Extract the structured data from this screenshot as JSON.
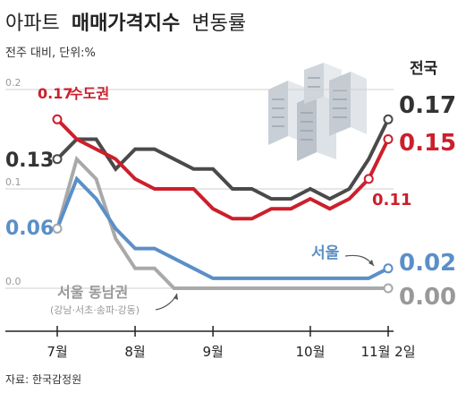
{
  "title_part1": "아파트",
  "title_part2": "매매가격지수",
  "title_part3": "변동률",
  "subtitle": "전주 대비, 단위:%",
  "source": "자료: 한국감정원",
  "colors": {
    "national": "#4a4a4a",
    "capital": "#cc1f2b",
    "seoul": "#5b8fc7",
    "gangnam": "#a9a9a9",
    "grid": "#cfcfcf",
    "background": "#ffffff"
  },
  "chart_data": {
    "type": "line",
    "title": "아파트 매매가격지수 변동률",
    "subtitle": "전주 대비, 단위:%",
    "xlabel": "",
    "ylabel": "",
    "x": [
      0,
      1,
      2,
      3,
      4,
      5,
      6,
      7,
      8,
      9,
      10,
      11,
      12,
      13,
      14,
      15,
      16,
      17
    ],
    "xtick_positions": [
      0,
      4,
      8,
      13,
      17
    ],
    "xtick_labels": [
      "7월",
      "8월",
      "9월",
      "10월",
      "11월 2일"
    ],
    "ylim": [
      -0.01,
      0.2
    ],
    "yticks": [
      0.0,
      0.1,
      0.2
    ],
    "ytick_labels": [
      "0.0",
      "0.1",
      "0.2"
    ],
    "grid": true,
    "series": [
      {
        "name": "전국",
        "key": "national",
        "values": [
          0.13,
          0.15,
          0.15,
          0.12,
          0.14,
          0.14,
          0.13,
          0.12,
          0.12,
          0.1,
          0.1,
          0.09,
          0.09,
          0.1,
          0.09,
          0.1,
          0.13,
          0.17
        ],
        "start_label": "0.13",
        "end_label": "0.17"
      },
      {
        "name": "수도권",
        "key": "capital",
        "values": [
          0.17,
          0.15,
          0.14,
          0.13,
          0.11,
          0.1,
          0.1,
          0.1,
          0.08,
          0.07,
          0.07,
          0.08,
          0.08,
          0.09,
          0.08,
          0.09,
          0.11,
          0.15
        ],
        "start_label": "0.17",
        "end_label": "0.15",
        "annotation": "0.11"
      },
      {
        "name": "서울",
        "key": "seoul",
        "values": [
          0.06,
          0.11,
          0.09,
          0.06,
          0.04,
          0.04,
          0.03,
          0.02,
          0.01,
          0.01,
          0.01,
          0.01,
          0.01,
          0.01,
          0.01,
          0.01,
          0.01,
          0.02
        ],
        "start_label": "0.06",
        "end_label": "0.02"
      },
      {
        "name": "서울 동남권",
        "sublabel": "(강남·서초·송파·강동)",
        "key": "gangnam",
        "values": [
          0.06,
          0.13,
          0.11,
          0.05,
          0.02,
          0.02,
          0.0,
          0.0,
          0.0,
          0.0,
          0.0,
          0.0,
          0.0,
          0.0,
          0.0,
          0.0,
          0.0,
          0.0
        ],
        "start_label": "0.06",
        "end_label": "0.00"
      }
    ]
  }
}
